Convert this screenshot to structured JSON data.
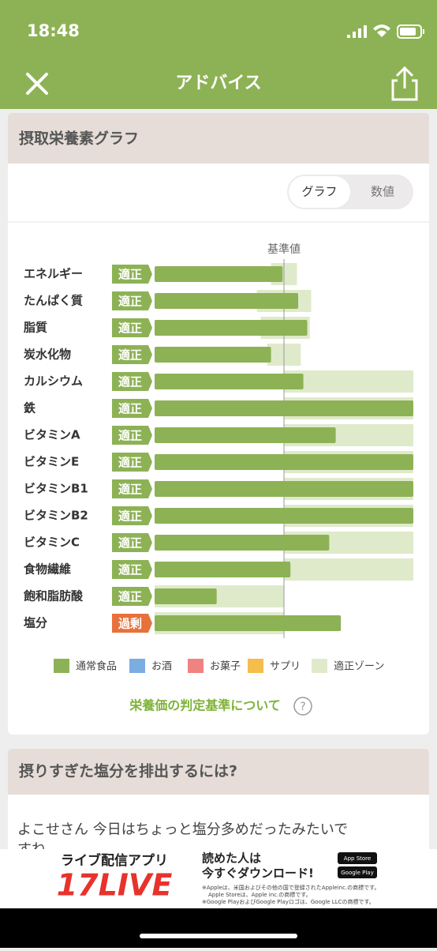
{
  "status_bar": {
    "time": "18:48"
  },
  "header": {
    "title": "アドバイス"
  },
  "section": {
    "title": "摂取栄養素グラフ",
    "tabs": [
      "グラフ",
      "数値"
    ]
  },
  "chart_data": {
    "type": "bar",
    "orientation": "horizontal",
    "categories": [
      "エネルギー",
      "たんぱく質",
      "脂質",
      "炭水化物",
      "カルシウム",
      "鉄",
      "ビタミンA",
      "ビタミンE",
      "ビタミンB1",
      "ビタミンB2",
      "ビタミンC",
      "食物繊維",
      "飽和脂肪酸",
      "塩分"
    ],
    "status": [
      "適正",
      "適正",
      "適正",
      "適正",
      "適正",
      "適正",
      "適正",
      "適正",
      "適正",
      "適正",
      "適正",
      "適正",
      "適正",
      "過剰"
    ],
    "status_colors": [
      "#8db255",
      "#8db255",
      "#8db255",
      "#8db255",
      "#8db255",
      "#8db255",
      "#8db255",
      "#8db255",
      "#8db255",
      "#8db255",
      "#8db255",
      "#8db255",
      "#8db255",
      "#e8713b"
    ],
    "values": [
      99,
      111,
      118,
      90,
      115,
      200,
      140,
      200,
      200,
      200,
      135,
      105,
      48,
      144
    ],
    "zones": [
      [
        90,
        110
      ],
      [
        79,
        121
      ],
      [
        82,
        120
      ],
      [
        87,
        113
      ],
      [
        100,
        200
      ],
      [
        100,
        200
      ],
      [
        100,
        200
      ],
      [
        100,
        200
      ],
      [
        100,
        200
      ],
      [
        100,
        200
      ],
      [
        100,
        200
      ],
      [
        100,
        200
      ],
      [
        0,
        100
      ],
      [
        0,
        100
      ]
    ],
    "xlim": [
      0,
      200
    ],
    "reference": {
      "value": 100,
      "label": "基準値"
    },
    "legend": [
      {
        "name": "通常食品",
        "color": "#8db255"
      },
      {
        "name": "お酒",
        "color": "#7aade0"
      },
      {
        "name": "お菓子",
        "color": "#f08282"
      },
      {
        "name": "サプリ",
        "color": "#f5bd4b"
      },
      {
        "name": "適正ゾーン",
        "color": "#dfeacb"
      }
    ]
  },
  "link": {
    "text": "栄養価の判定基準について",
    "icon": "?"
  },
  "section2": {
    "title": "摂りすぎた塩分を排出するには?",
    "body": [
      "よこせさん 今日はちょっと塩分多めだったみたいで",
      "すね"
    ]
  },
  "ad": {
    "tagline": "ライブ配信アプリ",
    "brand": "17LIVE",
    "headline": [
      "読めた人は",
      "今すぐダウンロード!"
    ],
    "notes": [
      "※Appleは、米国およびその他の国で登録されたAppleinc.の商標です。",
      "Apple Storeは、Apple inc.の商標です。",
      "※Google PlayおよびGoogle Playロゴは、Google LLCの商標です。"
    ],
    "badges": [
      "App Store",
      "Google Play"
    ]
  }
}
